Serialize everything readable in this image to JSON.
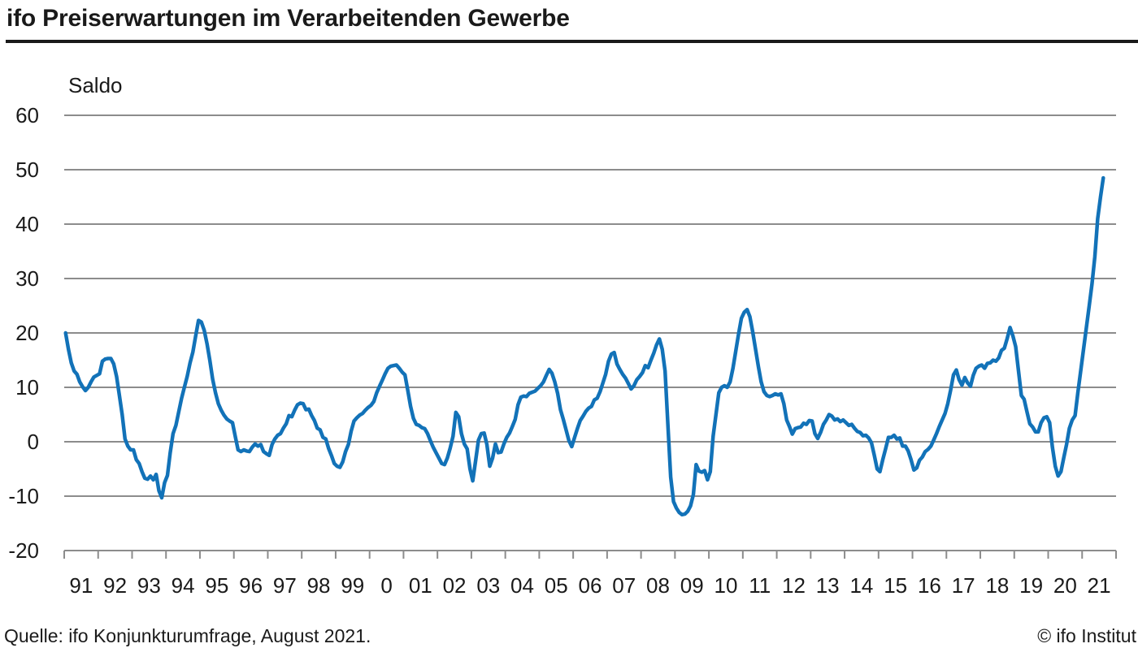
{
  "header": {
    "title": "ifo Preiserwartungen im Verarbeitenden Gewerbe"
  },
  "footer": {
    "source": "Quelle: ifo Konjunkturumfrage, August 2021.",
    "copyright": "© ifo Institut"
  },
  "colors": {
    "line": "#1272b8",
    "grid": "#8c8c8c",
    "text": "#1a1a1a",
    "title_rule": "#1a1a1a"
  },
  "chart_data": {
    "type": "line",
    "title": "ifo Preiserwartungen im Verarbeitenden Gewerbe",
    "ylabel": "Saldo",
    "xlabel": "",
    "ylim": [
      -20,
      60
    ],
    "grid": "horizontal",
    "legend_position": "none",
    "y_ticks": [
      60,
      50,
      40,
      30,
      20,
      10,
      0,
      -10,
      -20
    ],
    "x_tick_labels": [
      "91",
      "92",
      "93",
      "94",
      "95",
      "96",
      "97",
      "98",
      "99",
      "0",
      "01",
      "02",
      "03",
      "04",
      "05",
      "06",
      "07",
      "08",
      "09",
      "10",
      "11",
      "12",
      "13",
      "14",
      "15",
      "16",
      "17",
      "18",
      "19",
      "20",
      "21"
    ],
    "frequency": "monthly",
    "start_year": 1991,
    "start_month": 1,
    "end_year": 2021,
    "end_month": 8,
    "series": [
      {
        "name": "Preiserwartungen Saldo",
        "values": [
          20.0,
          17.0,
          14.5,
          13.0,
          12.4,
          11.0,
          10.1,
          9.4,
          10.0,
          11.0,
          11.9,
          12.2,
          12.5,
          14.8,
          15.2,
          15.3,
          15.3,
          14.3,
          12.0,
          8.6,
          5.0,
          0.5,
          -0.8,
          -1.5,
          -1.5,
          -3.3,
          -4.0,
          -5.5,
          -6.7,
          -6.9,
          -6.3,
          -7.0,
          -6.0,
          -9.0,
          -10.3,
          -7.5,
          -6.2,
          -2.0,
          1.5,
          3.0,
          5.5,
          8.0,
          10.0,
          12.0,
          14.5,
          16.5,
          19.5,
          22.3,
          22.0,
          20.5,
          18.0,
          15.0,
          11.5,
          9.0,
          7.0,
          5.8,
          4.9,
          4.2,
          3.8,
          3.5,
          1.0,
          -1.5,
          -1.8,
          -1.5,
          -1.7,
          -1.8,
          -1.0,
          -0.4,
          -0.8,
          -0.5,
          -1.8,
          -2.2,
          -2.5,
          -0.5,
          0.5,
          1.2,
          1.5,
          2.5,
          3.3,
          4.8,
          4.6,
          5.8,
          6.8,
          7.1,
          7.0,
          5.9,
          6.0,
          4.8,
          3.9,
          2.5,
          2.2,
          0.8,
          0.5,
          -1.2,
          -2.5,
          -4.0,
          -4.5,
          -4.7,
          -3.7,
          -1.8,
          -0.5,
          2.0,
          3.8,
          4.4,
          4.9,
          5.2,
          5.8,
          6.3,
          6.7,
          7.4,
          9.0,
          10.2,
          11.3,
          12.5,
          13.5,
          13.9,
          14.0,
          14.1,
          13.5,
          12.8,
          12.3,
          9.5,
          6.5,
          4.3,
          3.2,
          3.0,
          2.6,
          2.4,
          1.5,
          0.2,
          -1.0,
          -2.0,
          -3.0,
          -4.0,
          -4.2,
          -3.0,
          -1.2,
          1.0,
          5.4,
          4.6,
          1.5,
          -0.4,
          -1.3,
          -5.0,
          -7.2,
          -3.5,
          0.3,
          1.5,
          1.6,
          -0.5,
          -4.5,
          -3.0,
          -0.4,
          -2.0,
          -1.9,
          -0.4,
          0.8,
          1.6,
          2.8,
          4.1,
          6.8,
          8.2,
          8.4,
          8.3,
          8.9,
          9.1,
          9.3,
          9.8,
          10.3,
          11.0,
          12.2,
          13.3,
          12.6,
          11.0,
          8.9,
          5.9,
          4.1,
          2.2,
          0.2,
          -0.9,
          0.8,
          2.4,
          3.9,
          4.7,
          5.6,
          6.2,
          6.5,
          7.7,
          8.0,
          9.2,
          10.8,
          12.4,
          14.8,
          16.1,
          16.4,
          14.3,
          13.3,
          12.4,
          11.7,
          10.7,
          9.7,
          10.3,
          11.4,
          12.0,
          12.7,
          14.0,
          13.6,
          15.0,
          16.3,
          17.8,
          18.9,
          17.0,
          13.0,
          3.0,
          -6.5,
          -11.0,
          -12.2,
          -13.0,
          -13.4,
          -13.3,
          -12.8,
          -11.8,
          -9.7,
          -4.2,
          -5.4,
          -5.6,
          -5.3,
          -7.0,
          -5.5,
          1.0,
          5.0,
          9.0,
          10.0,
          10.3,
          10.0,
          11.0,
          13.5,
          16.6,
          19.8,
          22.7,
          23.8,
          24.3,
          23.0,
          20.2,
          17.0,
          13.8,
          11.0,
          9.2,
          8.5,
          8.3,
          8.5,
          8.8,
          8.6,
          8.8,
          7.0,
          4.0,
          2.8,
          1.4,
          2.4,
          2.6,
          2.7,
          3.4,
          3.2,
          3.9,
          3.8,
          1.5,
          0.6,
          1.7,
          3.2,
          4.0,
          5.0,
          4.7,
          4.0,
          4.2,
          3.7,
          4.0,
          3.5,
          3.0,
          3.2,
          2.5,
          1.9,
          1.7,
          1.1,
          1.2,
          0.7,
          -0.2,
          -2.5,
          -5.0,
          -5.5,
          -3.3,
          -1.3,
          0.8,
          0.8,
          1.2,
          0.5,
          0.7,
          -0.8,
          -0.8,
          -1.7,
          -3.3,
          -5.2,
          -4.8,
          -3.4,
          -2.8,
          -1.8,
          -1.4,
          -0.8,
          0.3,
          1.5,
          2.8,
          4.0,
          5.2,
          7.0,
          9.5,
          12.3,
          13.2,
          11.4,
          10.4,
          11.8,
          10.8,
          10.2,
          12.2,
          13.5,
          13.9,
          14.1,
          13.5,
          14.4,
          14.5,
          15.0,
          14.8,
          15.4,
          16.8,
          17.2,
          19.0,
          21.0,
          19.5,
          17.5,
          13.0,
          8.5,
          7.8,
          5.5,
          3.3,
          2.7,
          1.8,
          1.8,
          3.5,
          4.4,
          4.6,
          3.5,
          -1.0,
          -4.5,
          -6.3,
          -5.5,
          -3.0,
          -0.5,
          2.5,
          4.0,
          4.8,
          9.0,
          13.0,
          17.0,
          21.0,
          25.0,
          29.0,
          34.0,
          41.0,
          45.0,
          48.5
        ]
      }
    ]
  }
}
